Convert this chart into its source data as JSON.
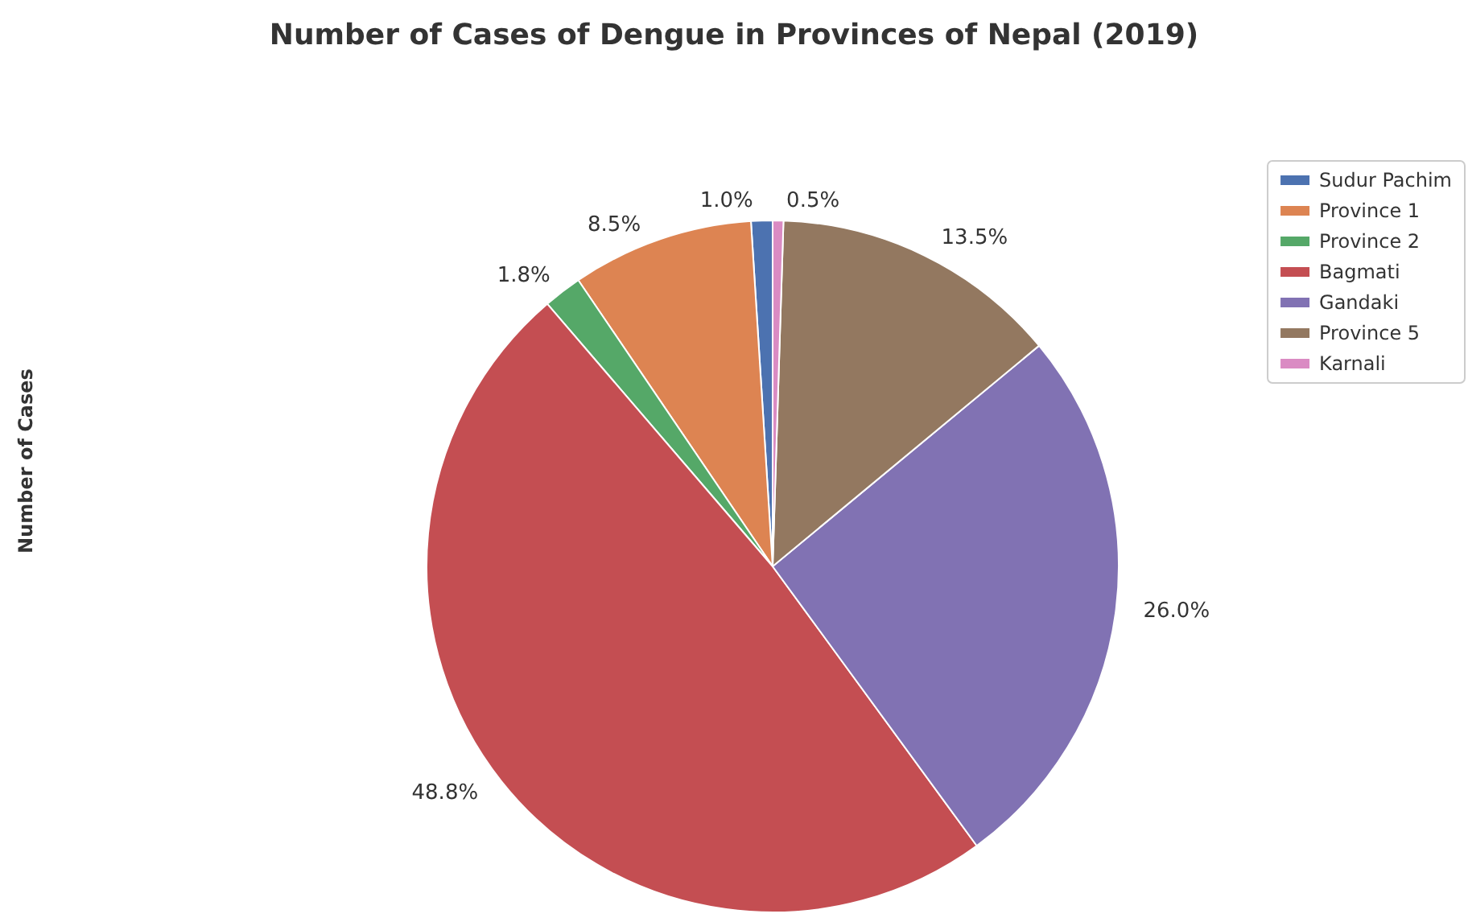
{
  "chart_data": {
    "type": "pie",
    "title": "Number of Cases of Dengue in Provinces of Nepal (2019)",
    "ylabel": "Number of Cases",
    "categories": [
      "Sudur Pachim",
      "Province 1",
      "Province 2",
      "Bagmati",
      "Gandaki",
      "Province 5",
      "Karnali"
    ],
    "values": [
      1.0,
      8.5,
      1.8,
      48.8,
      26.0,
      13.5,
      0.5
    ],
    "colors": [
      "#4c72b0",
      "#dd8452",
      "#55a868",
      "#c44e52",
      "#8172b3",
      "#937860",
      "#da8bc3"
    ],
    "value_labels": [
      "1.0%",
      "8.5%",
      "1.8%",
      "48.8%",
      "26.0%",
      "13.5%",
      "0.5%"
    ],
    "legend": "top right"
  }
}
